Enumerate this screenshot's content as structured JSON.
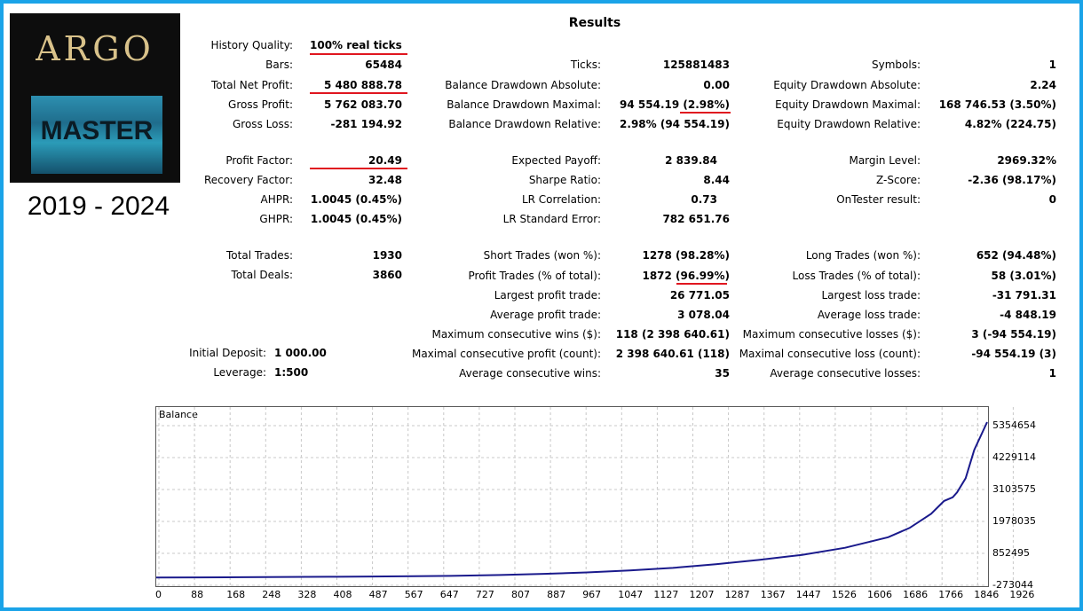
{
  "logo": {
    "title": "ARGO",
    "subtitle": "MASTER"
  },
  "years": "2019 - 2024",
  "results_title": "Results",
  "col1": [
    {
      "label": "History Quality:",
      "value": "100% real ticks"
    },
    {
      "label": "Bars:",
      "value": "65484"
    },
    {
      "label": "Total Net Profit:",
      "value": "5 480 888.78"
    },
    {
      "label": "Gross Profit:",
      "value": "5 762 083.70"
    },
    {
      "label": "Gross Loss:",
      "value": "-281 194.92"
    },
    {
      "label": "Profit Factor:",
      "value": "20.49"
    },
    {
      "label": "Recovery Factor:",
      "value": "32.48"
    },
    {
      "label": "AHPR:",
      "value": "1.0045 (0.45%)"
    },
    {
      "label": "GHPR:",
      "value": "1.0045 (0.45%)"
    },
    {
      "label": "Total Trades:",
      "value": "1930"
    },
    {
      "label": "Total Deals:",
      "value": "3860"
    },
    {
      "label": "Initial Deposit:",
      "value": "1 000.00"
    },
    {
      "label": "Leverage:",
      "value": "1:500"
    }
  ],
  "col2": [
    {
      "label": "Ticks:",
      "value": "125881483"
    },
    {
      "label": "Balance Drawdown Absolute:",
      "value": "0.00"
    },
    {
      "label": "Balance Drawdown Maximal:",
      "value": "94 554.19 (2.98%)"
    },
    {
      "label": "Balance Drawdown Relative:",
      "value": "2.98% (94 554.19)"
    },
    {
      "label": "Expected Payoff:",
      "value": "2 839.84"
    },
    {
      "label": "Sharpe Ratio:",
      "value": "8.44"
    },
    {
      "label": "LR Correlation:",
      "value": "0.73"
    },
    {
      "label": "LR Standard Error:",
      "value": "782 651.76"
    },
    {
      "label": "Short Trades (won %):",
      "value": "1278 (98.28%)"
    },
    {
      "label": "Profit Trades (% of total):",
      "value": "1872 (96.99%)"
    },
    {
      "label": "Largest profit trade:",
      "value": "26 771.05"
    },
    {
      "label": "Average profit trade:",
      "value": "3 078.04"
    },
    {
      "label": "Maximum consecutive wins ($):",
      "value": "118 (2 398 640.61)"
    },
    {
      "label": "Maximal consecutive profit (count):",
      "value": "2 398 640.61 (118)"
    },
    {
      "label": "Average consecutive wins:",
      "value": "35"
    }
  ],
  "col3": [
    {
      "label": "Symbols:",
      "value": "1"
    },
    {
      "label": "Equity Drawdown Absolute:",
      "value": "2.24"
    },
    {
      "label": "Equity Drawdown Maximal:",
      "value": "168 746.53 (3.50%)"
    },
    {
      "label": "Equity Drawdown Relative:",
      "value": "4.82% (224.75)"
    },
    {
      "label": "Margin Level:",
      "value": "2969.32%"
    },
    {
      "label": "Z-Score:",
      "value": "-2.36 (98.17%)"
    },
    {
      "label": "OnTester result:",
      "value": "0"
    },
    {
      "label": "Long Trades (won %):",
      "value": "652 (94.48%)"
    },
    {
      "label": "Loss Trades (% of total):",
      "value": "58 (3.01%)"
    },
    {
      "label": "Largest loss trade:",
      "value": "-31 791.31"
    },
    {
      "label": "Average loss trade:",
      "value": "-4 848.19"
    },
    {
      "label": "Maximum consecutive losses ($):",
      "value": "3 (-94 554.19)"
    },
    {
      "label": "Maximal consecutive loss (count):",
      "value": "-94 554.19 (3)"
    },
    {
      "label": "Average consecutive losses:",
      "value": "1"
    }
  ],
  "colors": {
    "frame": "#1aa3e8",
    "highlight": "#e0161f",
    "balance_line": "#1a1a8c",
    "grid": "#c8c8c8"
  },
  "chart_data": {
    "type": "line",
    "title": "Balance",
    "xlabel": "",
    "ylabel": "",
    "x_ticks": [
      "0",
      "88",
      "168",
      "248",
      "328",
      "408",
      "487",
      "567",
      "647",
      "727",
      "807",
      "887",
      "967",
      "1047",
      "1127",
      "1207",
      "1287",
      "1367",
      "1447",
      "1526",
      "1606",
      "1686",
      "1766",
      "1846",
      "1926"
    ],
    "y_ticks": [
      "5354654",
      "4229114",
      "3103575",
      "1978035",
      "852495",
      "-273044"
    ],
    "xlim": [
      0,
      1930
    ],
    "ylim": [
      -273044,
      5354654
    ],
    "grid": true,
    "series": [
      {
        "x": [
          0,
          100,
          200,
          300,
          400,
          500,
          600,
          700,
          800,
          900,
          1000,
          1100,
          1200,
          1300,
          1400,
          1500,
          1600,
          1700,
          1750,
          1800,
          1830,
          1850,
          1860,
          1880,
          1900,
          1930
        ],
        "values": [
          1000,
          5000,
          12000,
          20000,
          28000,
          35000,
          45000,
          60000,
          90000,
          130000,
          180000,
          250000,
          340000,
          470000,
          620000,
          800000,
          1050000,
          1420000,
          1750000,
          2250000,
          2700000,
          2830000,
          3000000,
          3500000,
          4500000,
          5480888
        ]
      }
    ]
  }
}
